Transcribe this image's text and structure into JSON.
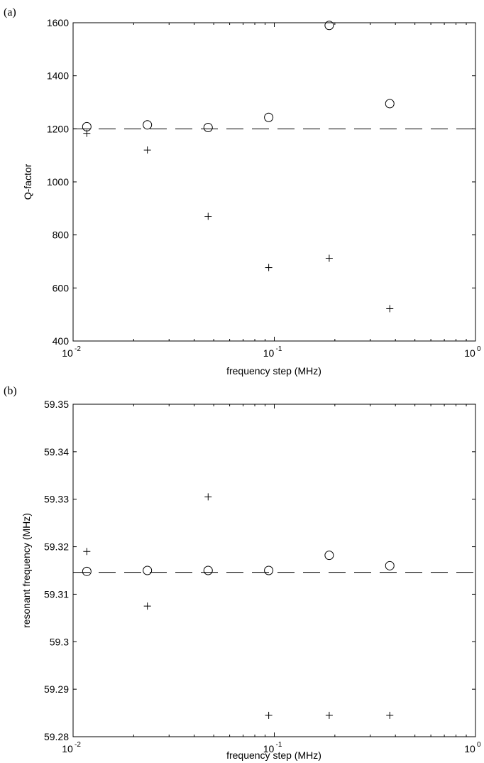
{
  "chart_data": [
    {
      "panel_label": "(a)",
      "type": "scatter",
      "xlabel": "frequency step (MHz)",
      "ylabel": "Q-factor",
      "xscale": "log",
      "xlim": [
        0.01,
        1
      ],
      "ylim": [
        400,
        1600
      ],
      "xticks": [
        {
          "base": "10",
          "exp": "-2",
          "value": 0.01
        },
        {
          "base": "10",
          "exp": "-1",
          "value": 0.1
        },
        {
          "base": "10",
          "exp": "0",
          "value": 1
        }
      ],
      "yticks": [
        {
          "label": "400",
          "value": 400
        },
        {
          "label": "600",
          "value": 600
        },
        {
          "label": "800",
          "value": 800
        },
        {
          "label": "1000",
          "value": 1000
        },
        {
          "label": "1200",
          "value": 1200
        },
        {
          "label": "1400",
          "value": 1400
        },
        {
          "label": "1600",
          "value": 1600
        }
      ],
      "reference_line": {
        "y": 1200,
        "style": "dashed"
      },
      "series": [
        {
          "marker": "circle",
          "x": [
            0.0117,
            0.0234,
            0.0469,
            0.0938,
            0.1875,
            0.375
          ],
          "y": [
            1208,
            1215,
            1205,
            1243,
            1590,
            1295
          ]
        },
        {
          "marker": "plus",
          "x": [
            0.0117,
            0.0234,
            0.0469,
            0.0938,
            0.1875,
            0.375
          ],
          "y": [
            1183,
            1120,
            870,
            677,
            712,
            522
          ]
        }
      ],
      "grid": false
    },
    {
      "panel_label": "(b)",
      "type": "scatter",
      "xlabel": "frequency step (MHz)",
      "ylabel": "resonant frequency (MHz)",
      "xscale": "log",
      "xlim": [
        0.01,
        1
      ],
      "ylim": [
        59.28,
        59.35
      ],
      "xticks": [
        {
          "base": "10",
          "exp": "-2",
          "value": 0.01
        },
        {
          "base": "10",
          "exp": "-1",
          "value": 0.1
        },
        {
          "base": "10",
          "exp": "0",
          "value": 1
        }
      ],
      "yticks": [
        {
          "label": "59.28",
          "value": 59.28
        },
        {
          "label": "59.29",
          "value": 59.29
        },
        {
          "label": "59.3",
          "value": 59.3
        },
        {
          "label": "59.31",
          "value": 59.31
        },
        {
          "label": "59.32",
          "value": 59.32
        },
        {
          "label": "59.33",
          "value": 59.33
        },
        {
          "label": "59.34",
          "value": 59.34
        },
        {
          "label": "59.35",
          "value": 59.35
        }
      ],
      "reference_line": {
        "y": 59.3146,
        "style": "dashed"
      },
      "series": [
        {
          "marker": "circle",
          "x": [
            0.0117,
            0.0234,
            0.0469,
            0.0938,
            0.1875,
            0.375
          ],
          "y": [
            59.3148,
            59.315,
            59.315,
            59.315,
            59.3182,
            59.316
          ]
        },
        {
          "marker": "plus",
          "x": [
            0.0117,
            0.0234,
            0.0469,
            0.0938,
            0.1875,
            0.375
          ],
          "y": [
            59.319,
            59.3075,
            59.3305,
            59.2845,
            59.2845,
            59.2845
          ]
        }
      ],
      "grid": false
    }
  ]
}
